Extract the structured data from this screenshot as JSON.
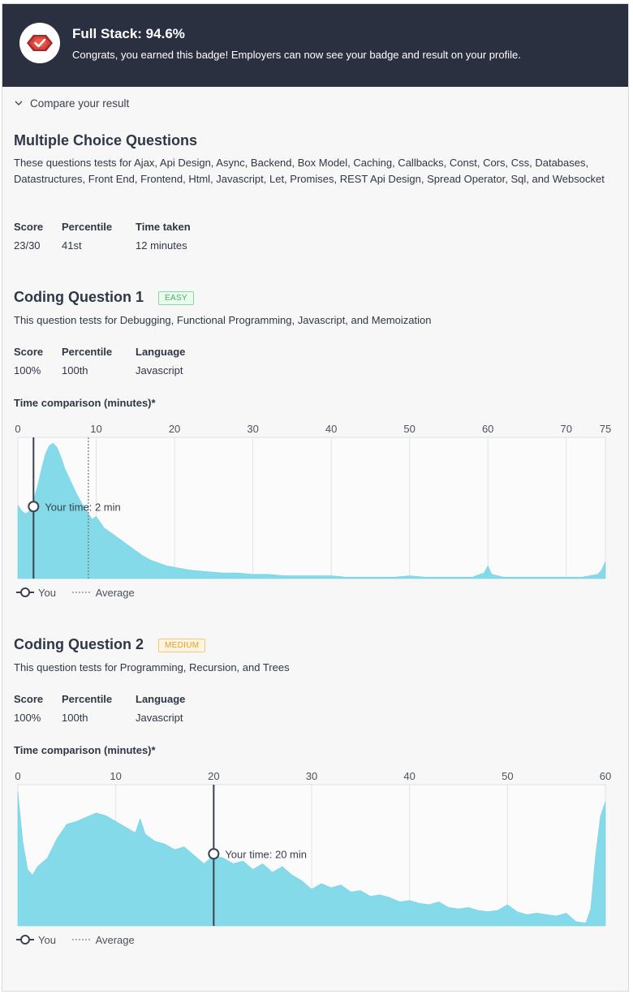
{
  "banner": {
    "title": "Full Stack: 94.6%",
    "subtitle": "Congrats, you earned this badge! Employers can now see your badge and result on your profile.",
    "icon": "badge-check-icon",
    "background": "#2b3040",
    "badge_color": "#d9443c"
  },
  "compare": {
    "label": "Compare your result",
    "icon": "chevron-down-icon"
  },
  "mcq": {
    "title": "Multiple Choice Questions",
    "description": "These questions tests for Ajax, Api Design, Async, Backend, Box Model, Caching, Callbacks, Const, Cors, Css, Databases, Datastructures, Front End, Frontend, Html, Javascript, Let, Promises, REST Api Design, Spread Operator, Sql, and Websocket",
    "stats": [
      {
        "label": "Score",
        "value": "23/30"
      },
      {
        "label": "Percentile",
        "value": "41st"
      },
      {
        "label": "Time taken",
        "value": "12 minutes"
      }
    ]
  },
  "coding1": {
    "title": "Coding Question 1",
    "difficulty": "EASY",
    "description": "This question tests for Debugging, Functional Programming, Javascript, and Memoization",
    "stats": [
      {
        "label": "Score",
        "value": "100%"
      },
      {
        "label": "Percentile",
        "value": "100th"
      },
      {
        "label": "Language",
        "value": "Javascript"
      }
    ],
    "chart_title": "Time comparison (minutes)*"
  },
  "coding2": {
    "title": "Coding Question 2",
    "difficulty": "MEDIUM",
    "description": "This question tests for Programming, Recursion, and Trees",
    "stats": [
      {
        "label": "Score",
        "value": "100%"
      },
      {
        "label": "Percentile",
        "value": "100th"
      },
      {
        "label": "Language",
        "value": "Javascript"
      }
    ],
    "chart_title": "Time comparison (minutes)*"
  },
  "legend": {
    "you": "You",
    "average": "Average"
  },
  "chart_data": [
    {
      "type": "area",
      "title": "Time comparison (minutes)*",
      "xlabel": "",
      "ylabel": "",
      "xlim": [
        0,
        75
      ],
      "x_ticks": [
        0,
        10,
        20,
        30,
        40,
        50,
        60,
        70,
        75
      ],
      "grid": true,
      "you_value": 2,
      "you_label": "Your time: 2 min",
      "average_value": 9,
      "fill_color": "#7dd8e8",
      "series": [
        {
          "x": [
            0,
            0.5,
            1,
            1.5,
            2,
            2.5,
            3,
            3.5,
            4,
            4.5,
            5,
            5.5,
            6,
            6.5,
            7,
            7.5,
            8,
            8.5,
            9,
            9.5,
            10,
            10.5,
            11,
            12,
            13,
            14,
            15,
            16,
            17,
            18,
            19,
            20,
            22,
            24,
            26,
            28,
            30,
            32,
            34,
            36,
            38,
            40,
            42,
            44,
            46,
            48,
            50,
            52,
            54,
            56,
            58,
            59.5,
            60,
            60.5,
            62,
            64,
            66,
            68,
            70,
            72,
            74,
            74.5,
            75
          ],
          "values": [
            52,
            48,
            46,
            48,
            55,
            65,
            77,
            88,
            94,
            96,
            93,
            86,
            78,
            72,
            66,
            60,
            55,
            50,
            46,
            42,
            44,
            40,
            36,
            32,
            28,
            24,
            20,
            16,
            13,
            11,
            9,
            8,
            6,
            5,
            4,
            4,
            3,
            3,
            2,
            2,
            2,
            2,
            1,
            1,
            1,
            1,
            2,
            1,
            1,
            1,
            1,
            4,
            9,
            3,
            1,
            1,
            1,
            1,
            1,
            1,
            3,
            6,
            12
          ]
        }
      ]
    },
    {
      "type": "area",
      "title": "Time comparison (minutes)*",
      "xlabel": "",
      "ylabel": "",
      "xlim": [
        0,
        60
      ],
      "x_ticks": [
        0,
        10,
        20,
        30,
        40,
        50,
        60
      ],
      "grid": true,
      "you_value": 20,
      "you_label": "Your time: 20 min",
      "fill_color": "#7dd8e8",
      "series": [
        {
          "x": [
            0,
            0.5,
            1,
            1.5,
            2,
            3,
            4,
            5,
            6,
            7,
            8,
            9,
            10,
            11,
            12,
            12.5,
            13,
            14,
            15,
            16,
            17,
            18,
            19,
            20,
            21,
            22,
            23,
            24,
            25,
            26,
            27,
            28,
            29,
            30,
            31,
            32,
            33,
            34,
            35,
            36,
            37,
            38,
            39,
            40,
            41,
            42,
            43,
            44,
            45,
            46,
            47,
            48,
            49,
            50,
            51,
            52,
            53,
            54,
            55,
            56,
            57,
            58,
            58.5,
            59,
            59.5,
            60
          ],
          "values": [
            95,
            60,
            40,
            36,
            42,
            48,
            62,
            72,
            74,
            77,
            80,
            78,
            74,
            70,
            66,
            76,
            65,
            60,
            58,
            54,
            56,
            50,
            44,
            50,
            48,
            44,
            46,
            40,
            44,
            38,
            42,
            36,
            32,
            26,
            30,
            27,
            29,
            24,
            25,
            21,
            22,
            20,
            17,
            18,
            16,
            15,
            17,
            13,
            12,
            13,
            11,
            10,
            11,
            15,
            10,
            8,
            9,
            8,
            7,
            9,
            3,
            2,
            12,
            50,
            78,
            88
          ]
        }
      ]
    }
  ]
}
